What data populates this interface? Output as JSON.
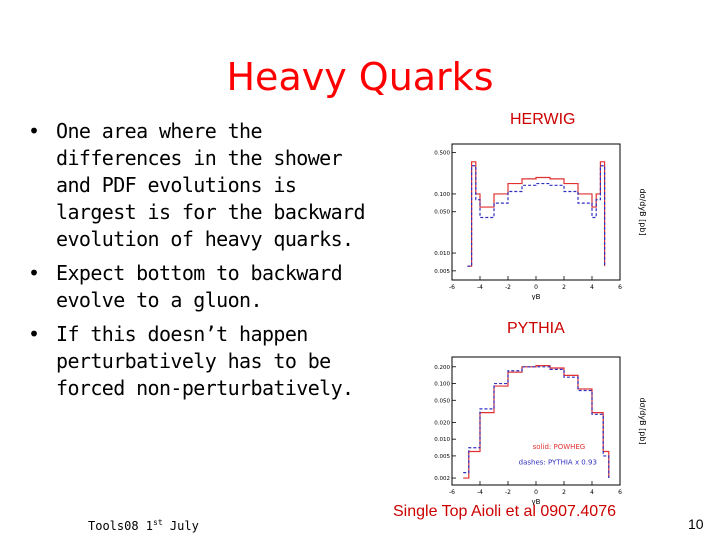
{
  "slide": {
    "title": "Heavy Quarks",
    "bullets": [
      "One area where the differences in the shower and PDF evolutions is largest is for the backward evolution of heavy quarks.",
      "Expect bottom to backward evolve to a gluon.",
      "If this doesn’t happen perturbatively has to be forced non-perturbatively."
    ],
    "footer_left": "Tools08 1",
    "footer_left_sup": "st",
    "footer_left_end": " July",
    "reference": "Single Top Aioli et al 0907.4076",
    "page_number": "10"
  },
  "colors": {
    "title": "#ff0000",
    "solid_series": "#e03030",
    "dash_series": "#3030c0",
    "label": "#cc0000"
  },
  "chart_data": [
    {
      "type": "line",
      "label_above": "HERWIG",
      "xlabel": "yB",
      "ylabel": "dσ/dyB [pb]",
      "x_ticks": [
        "-6",
        "-4",
        "-2",
        "0",
        "2",
        "4",
        "6"
      ],
      "y_ticks": [
        "0.500",
        "0.100",
        "0.050",
        "0.010",
        "0.005"
      ],
      "y_log": true,
      "xlim": [
        -6,
        6
      ],
      "ylim": [
        0.0035,
        0.7
      ],
      "series": [
        {
          "style": "solid",
          "x": [
            -4.9,
            -4.6,
            -4.3,
            -4,
            -3,
            -2,
            -1,
            0,
            1,
            2,
            3,
            4,
            4.3,
            4.6,
            4.9
          ],
          "y": [
            0.006,
            0.35,
            0.1,
            0.06,
            0.1,
            0.15,
            0.18,
            0.19,
            0.18,
            0.15,
            0.1,
            0.06,
            0.1,
            0.35,
            0.006
          ]
        },
        {
          "style": "dashed",
          "x": [
            -4.9,
            -4.6,
            -4.3,
            -4,
            -3,
            -2,
            -1,
            0,
            1,
            2,
            3,
            4,
            4.3,
            4.6,
            4.9
          ],
          "y": [
            0.006,
            0.3,
            0.08,
            0.04,
            0.07,
            0.11,
            0.14,
            0.15,
            0.14,
            0.11,
            0.07,
            0.04,
            0.08,
            0.3,
            0.006
          ]
        }
      ]
    },
    {
      "type": "line",
      "label_above": "PYTHIA",
      "xlabel": "yB",
      "ylabel": "dσ/dyB [pb]",
      "x_ticks": [
        "-6",
        "-4",
        "-2",
        "0",
        "2",
        "4",
        "6"
      ],
      "y_ticks": [
        "0.200",
        "0.100",
        "0.050",
        "0.020",
        "0.010",
        "0.005",
        "0.002"
      ],
      "y_log": true,
      "xlim": [
        -6,
        6
      ],
      "ylim": [
        0.0015,
        0.3
      ],
      "legend": [
        "solid: POWHEG",
        "dashes: PYTHIA x 0.93"
      ],
      "series": [
        {
          "style": "solid",
          "x": [
            -5.2,
            -4.8,
            -4,
            -3,
            -2,
            -1,
            0,
            1,
            2,
            3,
            4,
            4.8,
            5.2
          ],
          "y": [
            0.002,
            0.006,
            0.03,
            0.09,
            0.16,
            0.2,
            0.21,
            0.19,
            0.14,
            0.08,
            0.03,
            0.006,
            0.002
          ]
        },
        {
          "style": "dashed",
          "x": [
            -5.2,
            -4.8,
            -4,
            -3,
            -2,
            -1,
            0,
            1,
            2,
            3,
            4,
            4.8,
            5.2
          ],
          "y": [
            0.0025,
            0.007,
            0.035,
            0.1,
            0.17,
            0.2,
            0.2,
            0.18,
            0.13,
            0.075,
            0.028,
            0.005,
            0.002
          ]
        }
      ]
    }
  ]
}
